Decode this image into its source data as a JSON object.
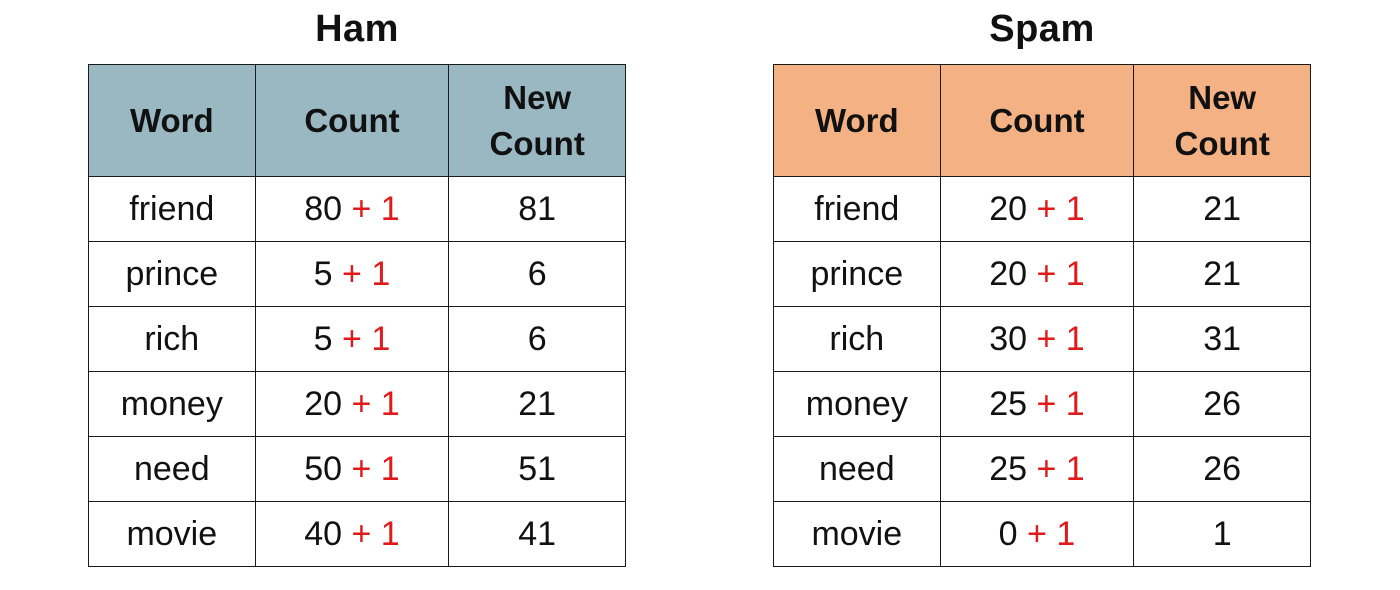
{
  "ham": {
    "title": "Ham",
    "headers": {
      "word": "Word",
      "count": "Count",
      "new_count_line1": "New",
      "new_count_line2": "Count"
    },
    "plus_one": "+ 1",
    "rows": [
      {
        "word": "friend",
        "count": "80",
        "new_count": "81"
      },
      {
        "word": "prince",
        "count": "5",
        "new_count": "6"
      },
      {
        "word": "rich",
        "count": "5",
        "new_count": "6"
      },
      {
        "word": "money",
        "count": "20",
        "new_count": "21"
      },
      {
        "word": "need",
        "count": "50",
        "new_count": "51"
      },
      {
        "word": "movie",
        "count": "40",
        "new_count": "41"
      }
    ],
    "header_color": "#9ab8c2"
  },
  "spam": {
    "title": "Spam",
    "headers": {
      "word": "Word",
      "count": "Count",
      "new_count_line1": "New",
      "new_count_line2": "Count"
    },
    "plus_one": "+ 1",
    "rows": [
      {
        "word": "friend",
        "count": "20",
        "new_count": "21"
      },
      {
        "word": "prince",
        "count": "20",
        "new_count": "21"
      },
      {
        "word": "rich",
        "count": "30",
        "new_count": "31"
      },
      {
        "word": "money",
        "count": "25",
        "new_count": "26"
      },
      {
        "word": "need",
        "count": "25",
        "new_count": "26"
      },
      {
        "word": "movie",
        "count": "0",
        "new_count": "1"
      }
    ],
    "header_color": "#f4b183"
  },
  "accent_color": "#e01a1a"
}
